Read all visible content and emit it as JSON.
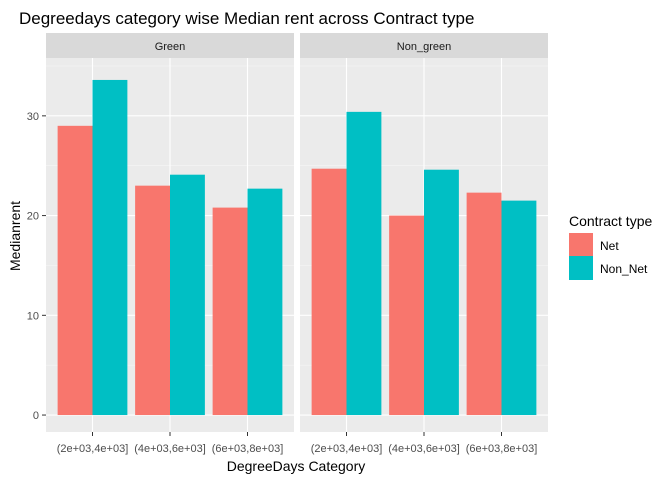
{
  "chart_data": {
    "type": "bar",
    "title": "Degreedays category wise Median rent across Contract type",
    "xlabel": "DegreeDays Category",
    "ylabel": "Medianrent",
    "ylim": [
      0,
      35
    ],
    "yticks": [
      0,
      10,
      20,
      30
    ],
    "categories": [
      "(2e+03,4e+03]",
      "(4e+03,6e+03]",
      "(6e+03,8e+03]"
    ],
    "facets": [
      {
        "label": "Green",
        "series": [
          {
            "name": "Net",
            "values": [
              29.0,
              23.0,
              20.8
            ]
          },
          {
            "name": "Non_Net",
            "values": [
              33.6,
              24.1,
              22.7
            ]
          }
        ]
      },
      {
        "label": "Non_green",
        "series": [
          {
            "name": "Net",
            "values": [
              24.7,
              20.0,
              22.3
            ]
          },
          {
            "name": "Non_Net",
            "values": [
              30.4,
              24.6,
              21.5
            ]
          }
        ]
      }
    ],
    "legend": {
      "title": "Contract type",
      "position": "right",
      "entries": [
        {
          "name": "Net",
          "color": "#F8766D"
        },
        {
          "name": "Non_Net",
          "color": "#00BFC4"
        }
      ]
    },
    "grid": true
  }
}
